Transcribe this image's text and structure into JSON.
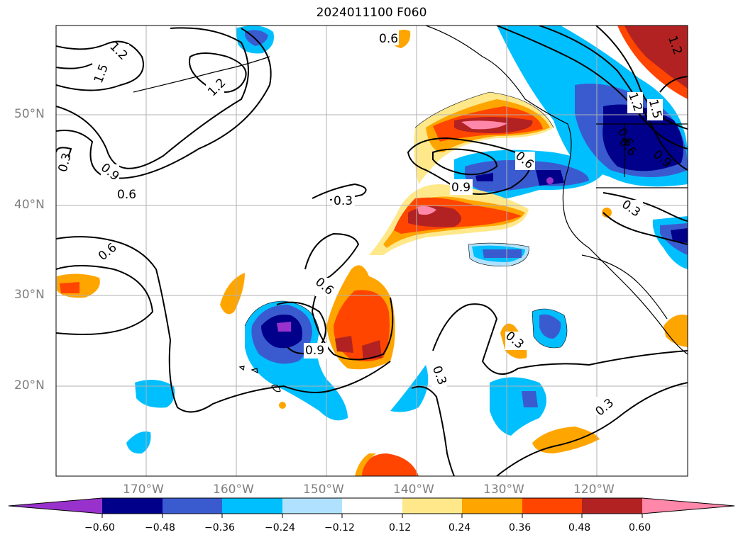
{
  "title": "2024011100 F060",
  "lat_labels": [
    "50°N",
    "40°N",
    "30°N",
    "20°N"
  ],
  "lon_labels": [
    "170°W",
    "160°W",
    "150°W",
    "140°W",
    "130°W",
    "120°W"
  ],
  "colorbar": {
    "ticks": [
      "−0.60",
      "−0.48",
      "−0.36",
      "−0.24",
      "−0.12",
      "0.12",
      "0.24",
      "0.36",
      "0.48",
      "0.60"
    ],
    "colors": [
      "#9932cc",
      "#00008b",
      "#3a5bd0",
      "#00bfff",
      "#b0e2ff",
      "#ffffff",
      "#ffe88a",
      "#ffa500",
      "#ff4500",
      "#b22222",
      "#ff88aa"
    ]
  },
  "contour_labels": [
    "1.2",
    "1.5",
    "1.2",
    "0.9",
    "0.6",
    "0.3",
    "0.6",
    "0.6",
    "0.9",
    "0.6",
    "0.3",
    "0.6",
    "0.9",
    "0.3",
    "0.3",
    "0.3",
    "0.3",
    "1.2",
    "1.5",
    "0.6",
    "0.9",
    "1.2",
    "0.6"
  ]
}
